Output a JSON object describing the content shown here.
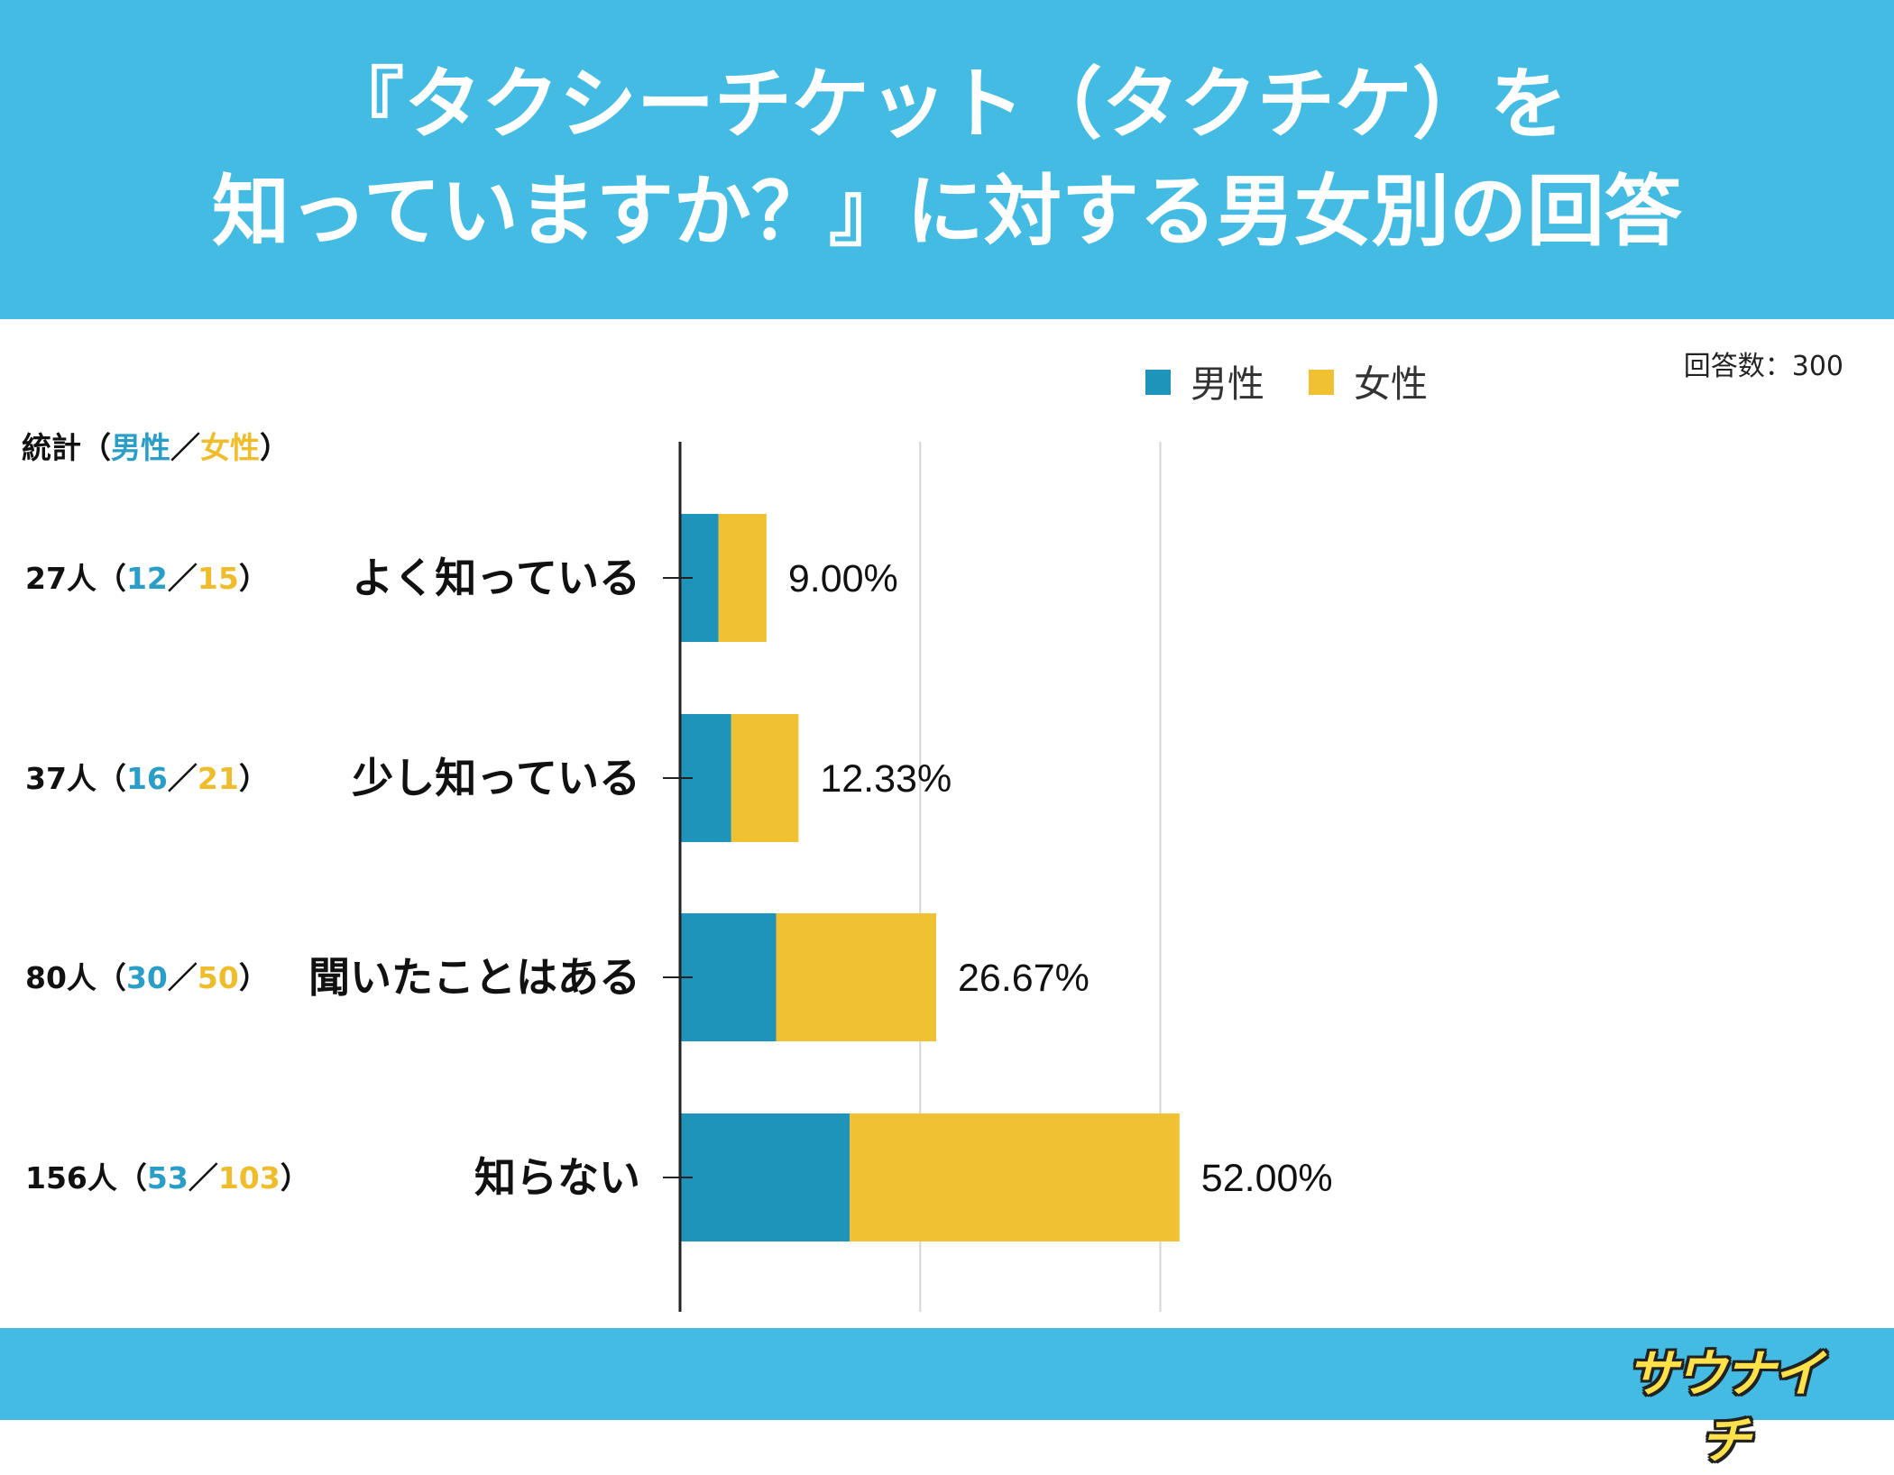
{
  "title": {
    "line1": "『タクシーチケット（タクチケ）を",
    "line2": "知っていますか？』に対する男女別の回答"
  },
  "legend": {
    "male": "男性",
    "female": "女性"
  },
  "total_label": "回答数：300",
  "stats_header": {
    "prefix": "統計（",
    "male": "男性",
    "sep": "／",
    "female": "女性",
    "suffix": "）"
  },
  "logo_text": "サウナイチ",
  "colors": {
    "header_band": "#43bbe3",
    "male": "#1e94bb",
    "female": "#f0c132",
    "stats_male": "#2a9ec7",
    "stats_female": "#efbd2c"
  },
  "chart_data": {
    "type": "bar",
    "orientation": "horizontal",
    "stacked": true,
    "categories": [
      "よく知っている",
      "少し知っている",
      "聞いたことはある",
      "知らない"
    ],
    "series": [
      {
        "name": "男性",
        "values": [
          12,
          16,
          30,
          53
        ]
      },
      {
        "name": "女性",
        "values": [
          15,
          21,
          50,
          103
        ]
      }
    ],
    "totals": [
      27,
      37,
      80,
      156
    ],
    "total_labels": [
      "27人",
      "37人",
      "80人",
      "156人"
    ],
    "percent_labels": [
      "9.00%",
      "12.33%",
      "26.67%",
      "52.00%"
    ],
    "xlim": [
      0,
      150
    ],
    "grid": true,
    "legend_position": "top-right"
  }
}
